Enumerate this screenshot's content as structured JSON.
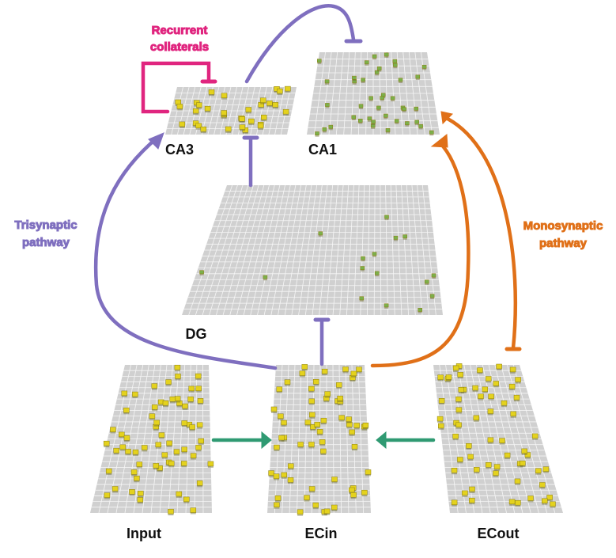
{
  "colors": {
    "recurrent": "#e0257f",
    "trisynaptic": "#7f6fbf",
    "monosynaptic": "#e07018",
    "lateral": "#2f9a72",
    "grid_bg": "#d0d0d0",
    "grid_line": "#f6f6f6",
    "unit_yellow": "#e4d21e",
    "unit_green": "#7bb04a"
  },
  "labels": {
    "recurrent_line1": "Recurrent",
    "recurrent_line2": "collaterals",
    "trisynaptic_line1": "Trisynaptic",
    "trisynaptic_line2": "pathway",
    "monosynaptic_line1": "Monosynaptic",
    "monosynaptic_line2": "pathway"
  },
  "layers": {
    "ca3": "CA3",
    "ca1": "CA1",
    "dg": "DG",
    "input": "Input",
    "ecin": "ECin",
    "ecout": "ECout"
  }
}
